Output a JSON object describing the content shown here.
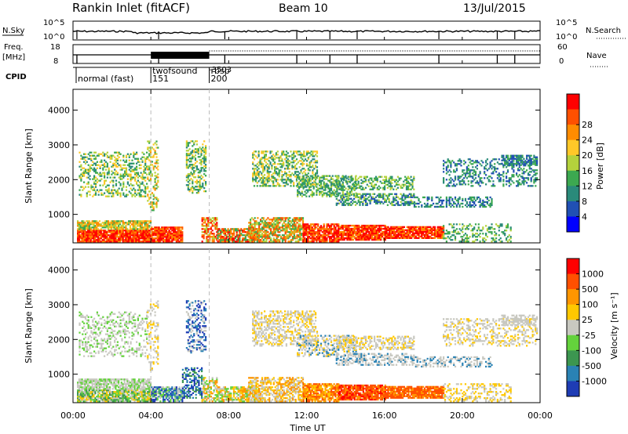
{
  "header": {
    "station": "Rankin Inlet (fitACF)",
    "beam": "Beam 10",
    "date": "13/Jul/2015"
  },
  "strip": {
    "nsky_label": "N.Sky",
    "nsky_ticks": [
      "10^5",
      "10^0"
    ],
    "nsearch_label": "N.Search",
    "nsearch_ticks": [
      "10^5",
      "10^0"
    ],
    "freq_label_1": "Freq.",
    "freq_label_2": "[MHz]",
    "freq_ticks": [
      "18",
      "8"
    ],
    "nave_label": "Nave",
    "nave_ticks": [
      "60",
      "0"
    ],
    "cpid_label": "CPID",
    "cpid_segments": [
      {
        "name": "normal (fast)",
        "start": 0.0,
        "end": 4.0,
        "code": ""
      },
      {
        "name": "twofsound",
        "start": 4.0,
        "end": 7.0,
        "code": "151"
      },
      {
        "name": "rbsp",
        "start": 7.0,
        "end": 24.0,
        "code": "200"
      }
    ],
    "cpid_extra": "-3503"
  },
  "chart_data": [
    {
      "type": "heatmap",
      "title": "",
      "xlabel": "Time UT",
      "ylabel": "Slant Range [km]",
      "xlim": [
        0,
        24
      ],
      "ylim": [
        180,
        4600
      ],
      "x_ticks": [
        "00:00",
        "04:00",
        "08:00",
        "12:00",
        "16:00",
        "20:00",
        "00:00"
      ],
      "y_ticks": [
        "1000",
        "2000",
        "3000",
        "4000"
      ],
      "colorbar_label": "Power [dB]",
      "colorbar_ticks": [
        "4",
        "8",
        "12",
        "16",
        "20",
        "24",
        "28"
      ],
      "colorbar_colors": [
        "#0000ff",
        "#2050b4",
        "#2a8a7a",
        "#3ca850",
        "#b4d23c",
        "#ffc828",
        "#ff8c00",
        "#ff5000",
        "#ff0000"
      ],
      "mode_change_times": [
        4.0,
        7.0
      ]
    },
    {
      "type": "heatmap",
      "title": "",
      "xlabel": "Time UT",
      "ylabel": "Slant Range [km]",
      "xlim": [
        0,
        24
      ],
      "ylim": [
        180,
        4600
      ],
      "x_ticks": [
        "00:00",
        "04:00",
        "08:00",
        "12:00",
        "16:00",
        "20:00",
        "00:00"
      ],
      "y_ticks": [
        "1000",
        "2000",
        "3000",
        "4000"
      ],
      "colorbar_label": "Velocity [m s⁻¹]",
      "colorbar_ticks": [
        "1000",
        "500",
        "100",
        "25",
        "-25",
        "-100",
        "-500",
        "-1000"
      ],
      "colorbar_colors": [
        "#1e3cb4",
        "#2a82b4",
        "#3c9650",
        "#64d23c",
        "#c8c8c0",
        "#ffc800",
        "#ff9600",
        "#ff5000",
        "#ff0000"
      ],
      "mode_change_times": [
        4.0,
        7.0
      ]
    }
  ],
  "time_axis_label": "Time UT",
  "time_ticks": [
    "00:00",
    "04:00",
    "08:00",
    "12:00",
    "16:00",
    "20:00",
    "00:00"
  ]
}
